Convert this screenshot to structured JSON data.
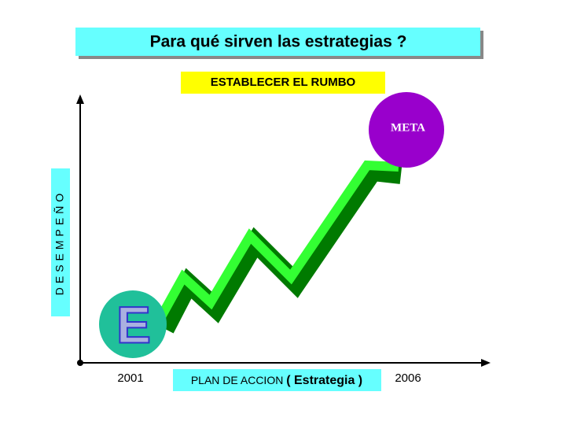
{
  "header": {
    "title": "Para qué sirven las estrategias ?",
    "subtitle": "ESTABLECER EL RUMBO"
  },
  "diagram": {
    "y_label": "DESEMPEÑO",
    "start_year": "2001",
    "end_year": "2006",
    "x_label": "PLAN DE ACCION",
    "x_label_emphasis": "( Estrategia )",
    "start_badge": "E",
    "goal": "META"
  }
}
